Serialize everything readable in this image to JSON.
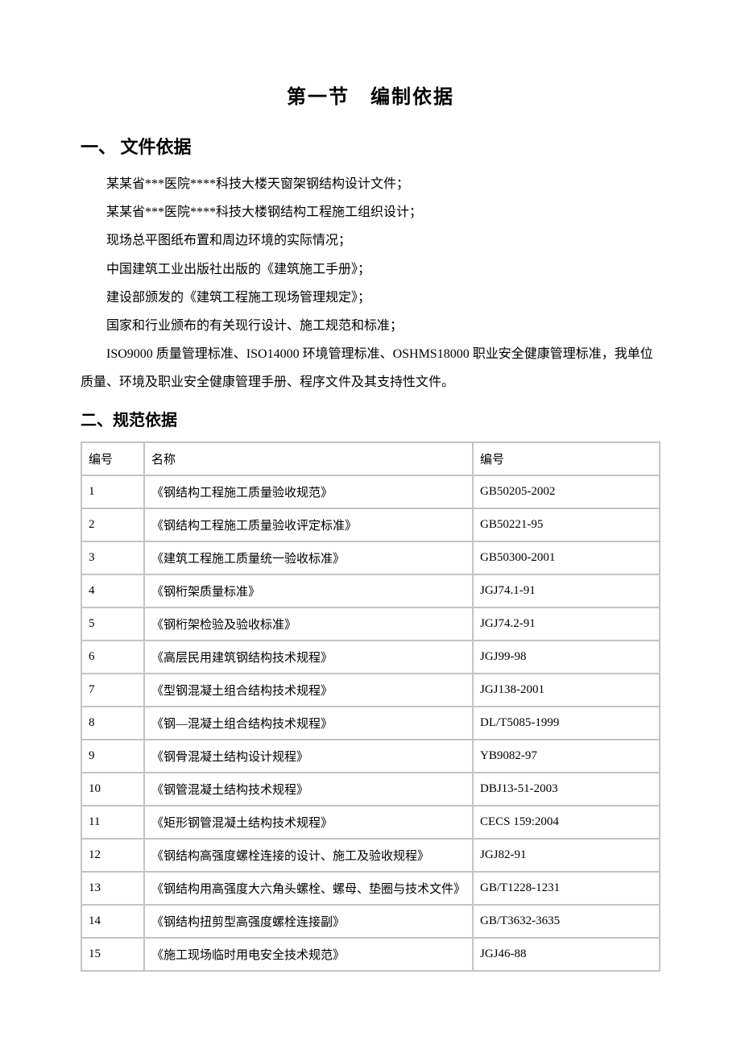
{
  "title": "第一节　编制依据",
  "section1": {
    "heading": "一、 文件依据",
    "paragraphs": [
      "某某省***医院****科技大楼天窗架钢结构设计文件；",
      "某某省***医院****科技大楼钢结构工程施工组织设计；",
      "现场总平图纸布置和周边环境的实际情况；",
      "中国建筑工业出版社出版的《建筑施工手册》；",
      "建设部颁发的《建筑工程施工现场管理规定》；",
      "国家和行业颁布的有关现行设计、施工规范和标准；",
      "ISO9000 质量管理标准、ISO14000 环境管理标准、OSHMS18000 职业安全健康管理标准，我单位质量、环境及职业安全健康管理手册、程序文件及其支持性文件。"
    ]
  },
  "section2": {
    "heading": "二、规范依据",
    "table": {
      "columns": [
        "编号",
        "名称",
        "编号"
      ],
      "rows": [
        [
          "1",
          "《钢结构工程施工质量验收规范》",
          "GB50205-2002"
        ],
        [
          "2",
          "《钢结构工程施工质量验收评定标准》",
          "GB50221-95"
        ],
        [
          "3",
          "《建筑工程施工质量统一验收标准》",
          "GB50300-2001"
        ],
        [
          "4",
          "《钢桁架质量标准》",
          "JGJ74.1-91"
        ],
        [
          "5",
          "《钢桁架检验及验收标准》",
          "JGJ74.2-91"
        ],
        [
          "6",
          "《高层民用建筑钢结构技术规程》",
          "JGJ99-98"
        ],
        [
          "7",
          "《型钢混凝土组合结构技术规程》",
          "JGJ138-2001"
        ],
        [
          "8",
          "《钢—混凝土组合结构技术规程》",
          "DL/T5085-1999"
        ],
        [
          "9",
          "《钢骨混凝土结构设计规程》",
          "YB9082-97"
        ],
        [
          "10",
          "《钢管混凝土结构技术规程》",
          "DBJ13-51-2003"
        ],
        [
          "11",
          "《矩形钢管混凝土结构技术规程》",
          "CECS 159:2004"
        ],
        [
          "12",
          "《钢结构高强度螺栓连接的设计、施工及验收规程》",
          "JGJ82-91"
        ],
        [
          "13",
          "《钢结构用高强度大六角头螺栓、螺母、垫圈与技术文件》",
          "GB/T1228-1231"
        ],
        [
          "14",
          "《钢结构扭剪型高强度螺栓连接副》",
          "GB/T3632-3635"
        ],
        [
          "15",
          "《施工现场临时用电安全技术规范》",
          "JGJ46-88"
        ]
      ]
    }
  },
  "style": {
    "background_color": "#ffffff",
    "text_color": "#000000",
    "table_border_color": "#c4c4c4",
    "title_fontsize": 24,
    "h1_fontsize": 22,
    "h2_fontsize": 20,
    "body_fontsize": 16,
    "table_fontsize": 15,
    "line_height": 2.2
  }
}
